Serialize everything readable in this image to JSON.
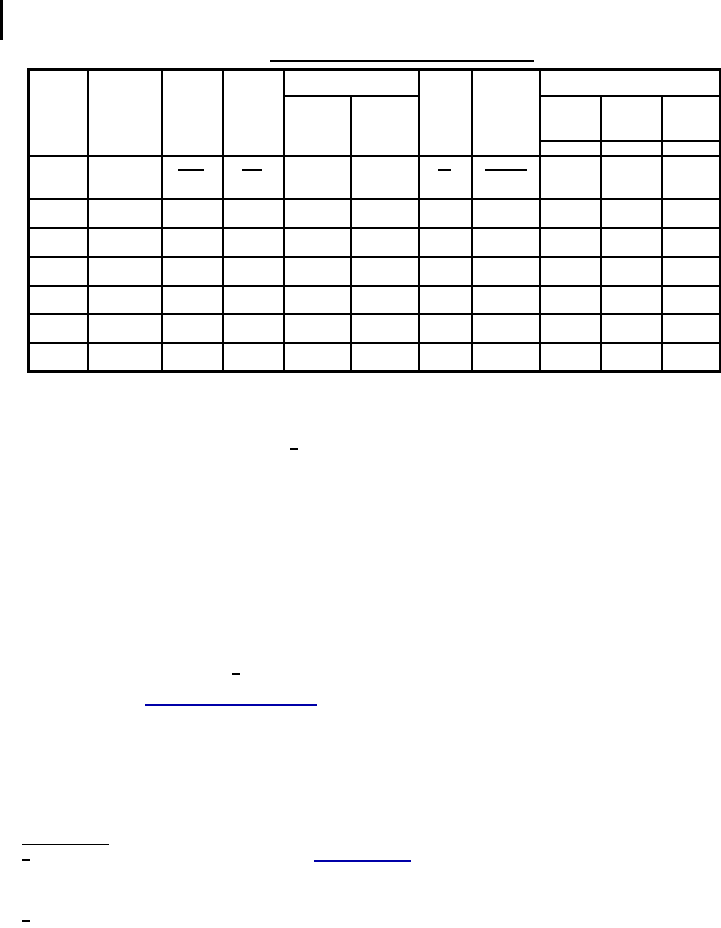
{
  "document": {
    "table": {
      "column_count": 11,
      "body_row_count": 6,
      "header_groups": [
        "",
        "",
        "",
        "",
        "group",
        "",
        "",
        "group"
      ]
    },
    "links": [
      "link-1",
      "link-2"
    ]
  },
  "colors": {
    "rule": "#000000",
    "link": "#0000a8",
    "background": "#ffffff"
  }
}
